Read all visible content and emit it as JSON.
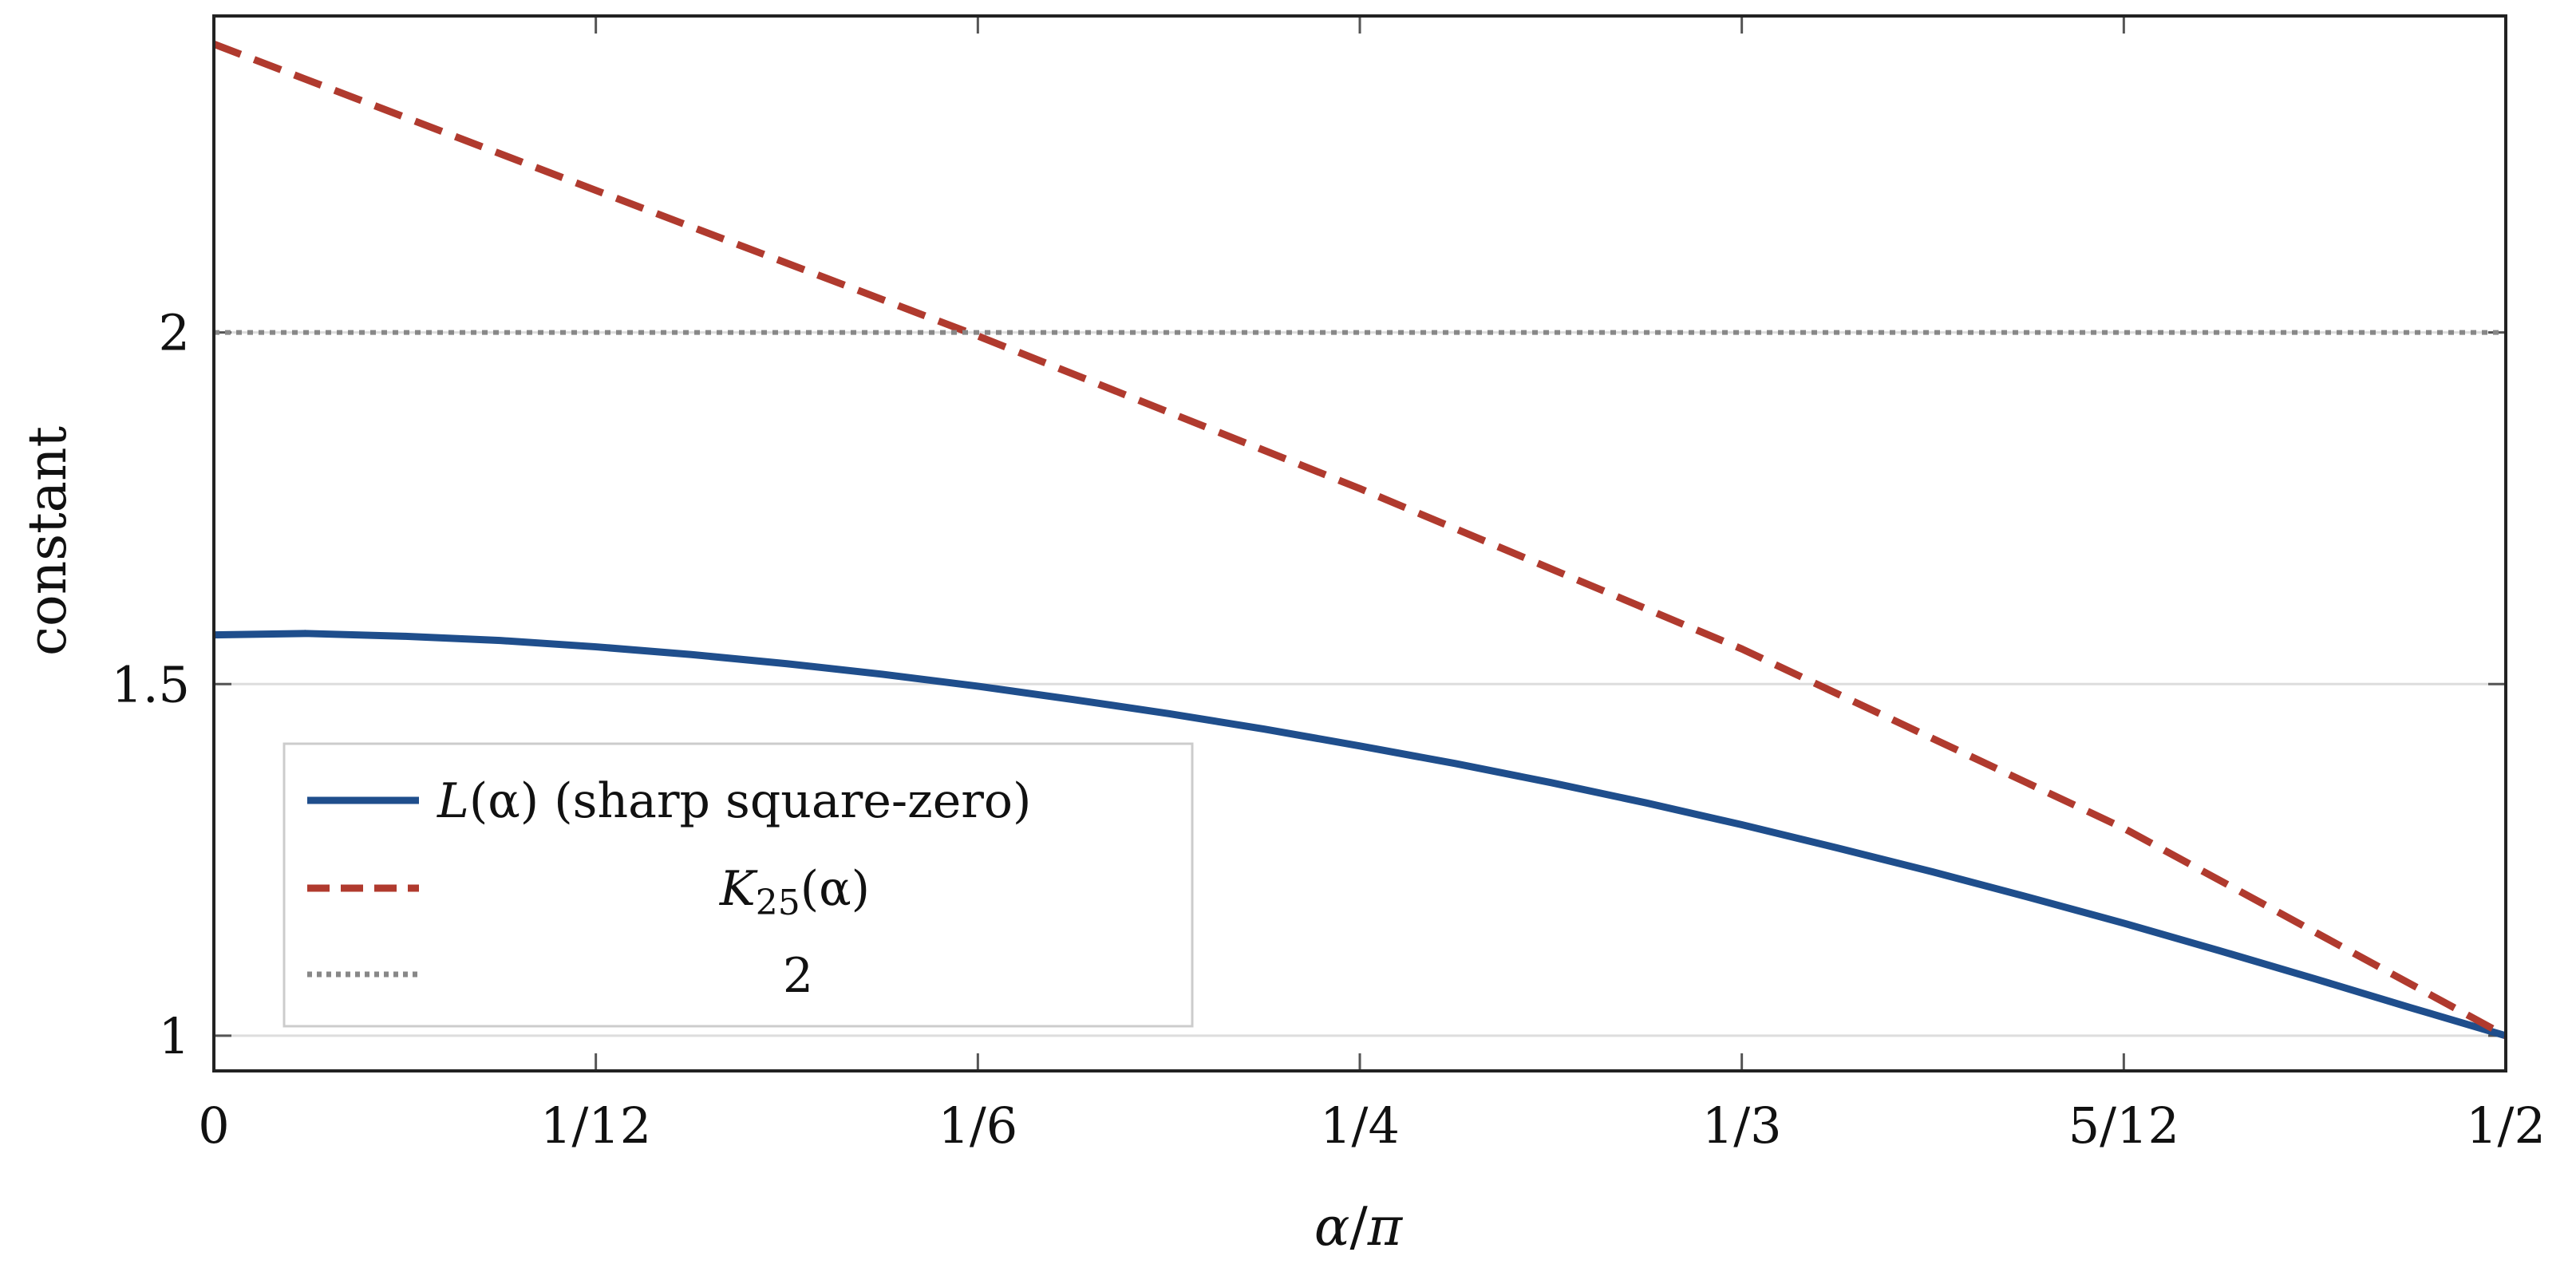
{
  "chart_data": {
    "type": "line",
    "title": "",
    "xlabel": "α/π",
    "ylabel": "constant",
    "xlim": [
      0,
      0.5
    ],
    "ylim": [
      0.95,
      2.45
    ],
    "x_ticks": [
      0,
      0.08333,
      0.16667,
      0.25,
      0.33333,
      0.41667,
      0.5
    ],
    "x_tick_labels": [
      "0",
      "1/12",
      "1/6",
      "1/4",
      "1/3",
      "5/12",
      "1/2"
    ],
    "y_ticks": [
      1,
      1.5,
      2
    ],
    "y_tick_labels": [
      "1",
      "1.5",
      "2"
    ],
    "grid": "horizontal",
    "legend_position": "bottom-left",
    "series": [
      {
        "name": "L(α) (sharp square-zero)",
        "style": "solid",
        "color": "#1f4e8c",
        "x": [
          0,
          0.02,
          0.04167,
          0.0625,
          0.08333,
          0.10417,
          0.125,
          0.14583,
          0.16667,
          0.1875,
          0.20833,
          0.22917,
          0.25,
          0.27083,
          0.29167,
          0.3125,
          0.33333,
          0.35417,
          0.375,
          0.39583,
          0.41667,
          0.4375,
          0.45833,
          0.47917,
          0.5
        ],
        "y": [
          1.57,
          1.572,
          1.568,
          1.562,
          1.553,
          1.542,
          1.529,
          1.514,
          1.497,
          1.478,
          1.458,
          1.436,
          1.412,
          1.387,
          1.36,
          1.331,
          1.3,
          1.267,
          1.233,
          1.197,
          1.16,
          1.121,
          1.081,
          1.04,
          1.0
        ]
      },
      {
        "name": "K25(α)",
        "style": "dashed",
        "color": "#b03a2e",
        "x": [
          0,
          0.08333,
          0.16667,
          0.25,
          0.33333,
          0.41667,
          0.5
        ],
        "y": [
          2.41,
          2.202,
          1.995,
          1.778,
          1.55,
          1.295,
          1.0
        ]
      },
      {
        "name": "2",
        "style": "dotted",
        "color": "#888888",
        "x": [
          0,
          0.5
        ],
        "y": [
          2,
          2
        ]
      }
    ]
  },
  "legend": {
    "l_main": "L",
    "l_arg": "(α)",
    "l_note": " (sharp square-zero)",
    "k_main": "K",
    "k_sub": "25",
    "k_arg": "(α)",
    "c_label": "2"
  },
  "axes": {
    "x_label_alpha": "α",
    "x_label_slash": "/",
    "x_label_pi": "π"
  }
}
